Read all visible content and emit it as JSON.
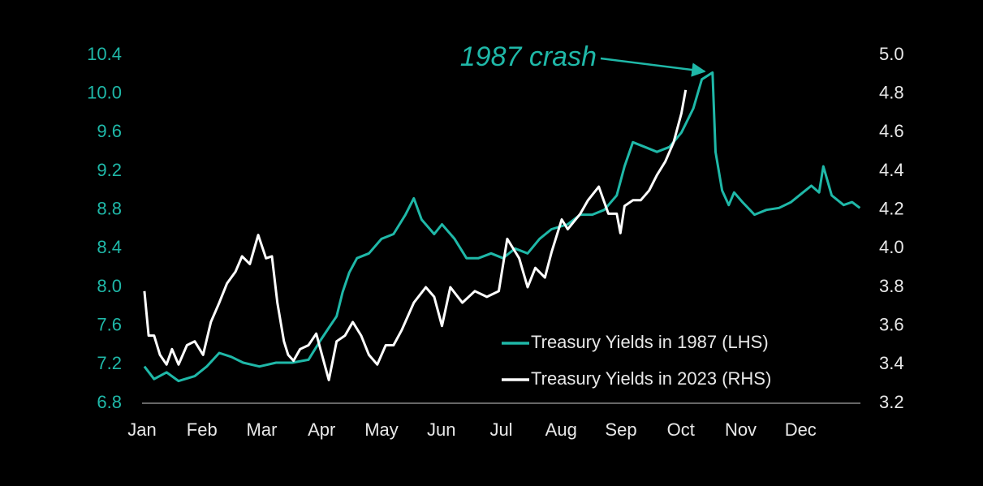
{
  "chart_data": {
    "type": "line",
    "annotation": "1987 crash",
    "xlim": [
      0,
      12
    ],
    "xticks": [
      {
        "value": 0,
        "label": "Jan"
      },
      {
        "value": 1,
        "label": "Feb"
      },
      {
        "value": 2,
        "label": "Mar"
      },
      {
        "value": 3,
        "label": "Apr"
      },
      {
        "value": 4,
        "label": "May"
      },
      {
        "value": 5,
        "label": "Jun"
      },
      {
        "value": 6,
        "label": "Jul"
      },
      {
        "value": 7,
        "label": "Aug"
      },
      {
        "value": 8,
        "label": "Sep"
      },
      {
        "value": 9,
        "label": "Oct"
      },
      {
        "value": 10,
        "label": "Nov"
      },
      {
        "value": 11,
        "label": "Dec"
      }
    ],
    "ylim": [
      6.8,
      10.4
    ],
    "yticks": [
      6.8,
      7.2,
      7.6,
      {
        "value": 8,
        "label": "8.0"
      },
      8.4,
      8.8,
      9.2,
      9.6,
      {
        "value": 10,
        "label": "10.0"
      },
      10.4
    ],
    "y2lim": [
      3.2,
      5.0
    ],
    "y2ticks": [
      3.2,
      3.4,
      3.6,
      3.8,
      {
        "value": 4,
        "label": "4.0"
      },
      4.2,
      4.4,
      4.6,
      4.8,
      {
        "value": 5,
        "label": "5.0"
      }
    ],
    "legend": "lower right",
    "series": [
      {
        "name": "Treasury Yields in 1987 (LHS)",
        "color": "#1fb8a8",
        "axis": "y",
        "x": [
          0.04,
          0.2,
          0.41,
          0.61,
          0.88,
          1.08,
          1.29,
          1.49,
          1.69,
          1.96,
          2.24,
          2.51,
          2.78,
          2.98,
          3.12,
          3.25,
          3.35,
          3.46,
          3.59,
          3.79,
          4.0,
          4.2,
          4.4,
          4.54,
          4.67,
          4.88,
          5.01,
          5.22,
          5.42,
          5.62,
          5.83,
          6.03,
          6.23,
          6.44,
          6.64,
          6.84,
          7.11,
          7.32,
          7.52,
          7.72,
          7.93,
          8.06,
          8.2,
          8.4,
          8.6,
          8.81,
          9.01,
          9.21,
          9.35,
          9.53,
          9.58,
          9.69,
          9.8,
          9.89,
          10.03,
          10.23,
          10.43,
          10.64,
          10.84,
          11.04,
          11.18,
          11.31,
          11.38,
          11.52,
          11.72,
          11.86,
          11.99
        ],
        "values": [
          7.18,
          7.05,
          7.12,
          7.03,
          7.08,
          7.18,
          7.32,
          7.28,
          7.22,
          7.18,
          7.22,
          7.22,
          7.25,
          7.45,
          7.58,
          7.7,
          7.95,
          8.15,
          8.3,
          8.35,
          8.5,
          8.55,
          8.75,
          8.92,
          8.7,
          8.55,
          8.65,
          8.5,
          8.3,
          8.3,
          8.35,
          8.3,
          8.4,
          8.35,
          8.5,
          8.6,
          8.65,
          8.75,
          8.75,
          8.8,
          8.95,
          9.25,
          9.5,
          9.45,
          9.4,
          9.45,
          9.6,
          9.85,
          10.15,
          10.22,
          9.4,
          9.0,
          8.85,
          8.98,
          8.88,
          8.75,
          8.8,
          8.82,
          8.88,
          8.98,
          9.05,
          8.98,
          9.25,
          8.95,
          8.85,
          8.88,
          8.82
        ]
      },
      {
        "name": "Treasury Yields in 2023 (RHS)",
        "color": "#ffffff",
        "axis": "y2",
        "x": [
          0.04,
          0.11,
          0.2,
          0.3,
          0.41,
          0.5,
          0.61,
          0.75,
          0.88,
          1.02,
          1.15,
          1.29,
          1.42,
          1.56,
          1.67,
          1.8,
          1.94,
          2.07,
          2.17,
          2.26,
          2.37,
          2.44,
          2.53,
          2.64,
          2.78,
          2.91,
          3.05,
          3.12,
          3.25,
          3.39,
          3.52,
          3.66,
          3.79,
          3.93,
          4.07,
          4.2,
          4.34,
          4.54,
          4.74,
          4.88,
          5.01,
          5.15,
          5.35,
          5.56,
          5.76,
          5.96,
          6.1,
          6.3,
          6.44,
          6.57,
          6.73,
          6.84,
          7.01,
          7.11,
          7.32,
          7.45,
          7.63,
          7.79,
          7.93,
          7.99,
          8.06,
          8.2,
          8.33,
          8.47,
          8.6,
          8.74,
          8.88,
          9.01,
          9.08
        ],
        "values": [
          3.78,
          3.55,
          3.55,
          3.45,
          3.4,
          3.48,
          3.4,
          3.5,
          3.52,
          3.45,
          3.62,
          3.72,
          3.82,
          3.88,
          3.96,
          3.92,
          4.07,
          3.95,
          3.96,
          3.72,
          3.52,
          3.45,
          3.42,
          3.48,
          3.5,
          3.56,
          3.4,
          3.32,
          3.52,
          3.55,
          3.62,
          3.55,
          3.45,
          3.4,
          3.5,
          3.5,
          3.58,
          3.72,
          3.8,
          3.75,
          3.6,
          3.8,
          3.72,
          3.78,
          3.75,
          3.78,
          4.05,
          3.95,
          3.8,
          3.9,
          3.85,
          3.98,
          4.15,
          4.1,
          4.18,
          4.25,
          4.32,
          4.18,
          4.18,
          4.08,
          4.22,
          4.25,
          4.25,
          4.3,
          4.38,
          4.45,
          4.55,
          4.7,
          4.82
        ]
      }
    ]
  }
}
